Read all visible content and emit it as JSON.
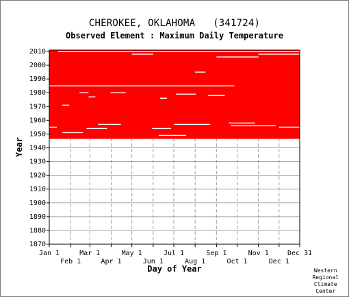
{
  "header": {
    "title": "CHEROKEE, OKLAHOMA   (341724)",
    "subtitle": "Observed Element : Maximum Daily Temperature"
  },
  "credit": [
    "Western",
    "Regional",
    "Climate",
    "Center"
  ],
  "colors": {
    "data": "#ff0000",
    "grid": "#a0a0a0",
    "axis": "#000000",
    "background": "#ffffff"
  },
  "chart_data": {
    "type": "heatmap",
    "title": "CHEROKEE, OKLAHOMA   (341724)",
    "subtitle": "Observed Element : Maximum Daily Temperature",
    "xlabel": "Day of Year",
    "ylabel": "Year",
    "xlim": [
      1,
      365
    ],
    "ylim": [
      1870,
      2011
    ],
    "grid": true,
    "x_ticks_top": [
      {
        "label": "Jan 1",
        "day": 1
      },
      {
        "label": "Mar 1",
        "day": 60
      },
      {
        "label": "May 1",
        "day": 121
      },
      {
        "label": "Jul 1",
        "day": 182
      },
      {
        "label": "Sep 1",
        "day": 244
      },
      {
        "label": "Nov 1",
        "day": 305
      },
      {
        "label": "Dec 31",
        "day": 365
      }
    ],
    "x_ticks_bottom": [
      {
        "label": "Feb 1",
        "day": 32
      },
      {
        "label": "Apr 1",
        "day": 91
      },
      {
        "label": "Jun 1",
        "day": 152
      },
      {
        "label": "Aug 1",
        "day": 213
      },
      {
        "label": "Oct 1",
        "day": 274
      },
      {
        "label": "Dec 1",
        "day": 335
      }
    ],
    "y_ticks": [
      1870,
      1880,
      1890,
      1900,
      1910,
      1920,
      1930,
      1940,
      1950,
      1960,
      1970,
      1980,
      1990,
      2000,
      2010
    ],
    "observed": {
      "name": "Observed",
      "year_start": 1947,
      "year_end": 2010.6,
      "day_start": 1,
      "day_end": 365
    },
    "gaps": [
      {
        "year": 2010,
        "day_start": 14,
        "day_end": 365
      },
      {
        "year": 2008,
        "day_start": 121,
        "day_end": 152
      },
      {
        "year": 2008,
        "day_start": 305,
        "day_end": 365
      },
      {
        "year": 2006,
        "day_start": 244,
        "day_end": 305
      },
      {
        "year": 1995,
        "day_start": 213,
        "day_end": 228
      },
      {
        "year": 1985,
        "day_start": 1,
        "day_end": 270
      },
      {
        "year": 1980,
        "day_start": 45,
        "day_end": 58
      },
      {
        "year": 1980,
        "day_start": 90,
        "day_end": 112
      },
      {
        "year": 1979,
        "day_start": 185,
        "day_end": 214
      },
      {
        "year": 1978,
        "day_start": 232,
        "day_end": 256
      },
      {
        "year": 1977,
        "day_start": 58,
        "day_end": 68
      },
      {
        "year": 1976,
        "day_start": 162,
        "day_end": 172
      },
      {
        "year": 1971,
        "day_start": 20,
        "day_end": 30
      },
      {
        "year": 1958,
        "day_start": 262,
        "day_end": 300
      },
      {
        "year": 1957,
        "day_start": 72,
        "day_end": 105
      },
      {
        "year": 1957,
        "day_start": 182,
        "day_end": 235
      },
      {
        "year": 1956,
        "day_start": 265,
        "day_end": 330
      },
      {
        "year": 1955,
        "day_start": 1,
        "day_end": 12
      },
      {
        "year": 1955,
        "day_start": 335,
        "day_end": 365
      },
      {
        "year": 1954,
        "day_start": 55,
        "day_end": 85
      },
      {
        "year": 1954,
        "day_start": 150,
        "day_end": 178
      },
      {
        "year": 1951,
        "day_start": 20,
        "day_end": 50
      },
      {
        "year": 1949,
        "day_start": 160,
        "day_end": 200
      }
    ]
  }
}
